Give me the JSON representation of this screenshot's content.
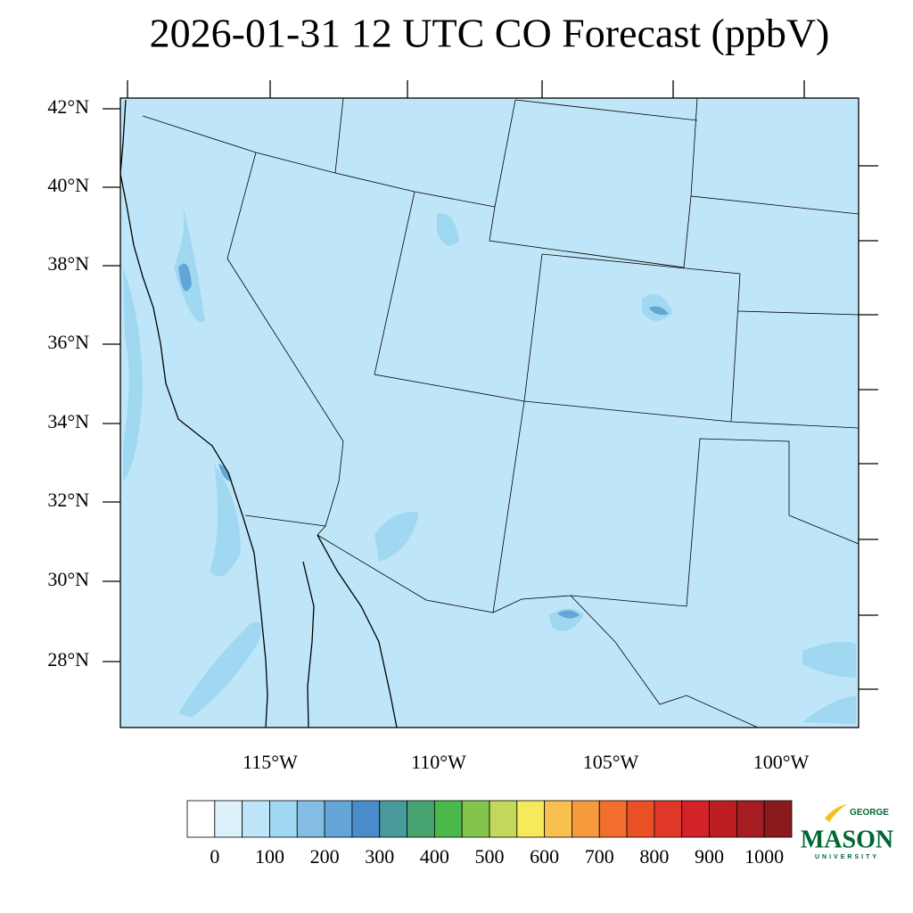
{
  "title": "2026-01-31 12 UTC CO Forecast (ppbV)",
  "map": {
    "lat_labels": [
      "42°N",
      "40°N",
      "38°N",
      "36°N",
      "34°N",
      "32°N",
      "30°N",
      "28°N"
    ],
    "lon_labels": [
      "115°W",
      "110°W",
      "105°W",
      "100°W"
    ]
  },
  "colorbar": {
    "colors": [
      "#ffffff",
      "#ddf1fa",
      "#bfe6f8",
      "#a0d8f2",
      "#83bde4",
      "#64a5d8",
      "#4a8ccb",
      "#489b9a",
      "#48a571",
      "#4ab84a",
      "#83c44d",
      "#c3d85a",
      "#f6ea5c",
      "#f8c04e",
      "#f69a3e",
      "#f26e2c",
      "#ea5026",
      "#e03828",
      "#d32228",
      "#bc1e24",
      "#a51c22",
      "#8b1a1c"
    ],
    "labels": [
      0,
      100,
      200,
      300,
      400,
      500,
      600,
      700,
      800,
      900,
      1000
    ]
  },
  "logo": {
    "top": "GEORGE",
    "name": "MASON",
    "bottom": "UNIVERSITY"
  }
}
